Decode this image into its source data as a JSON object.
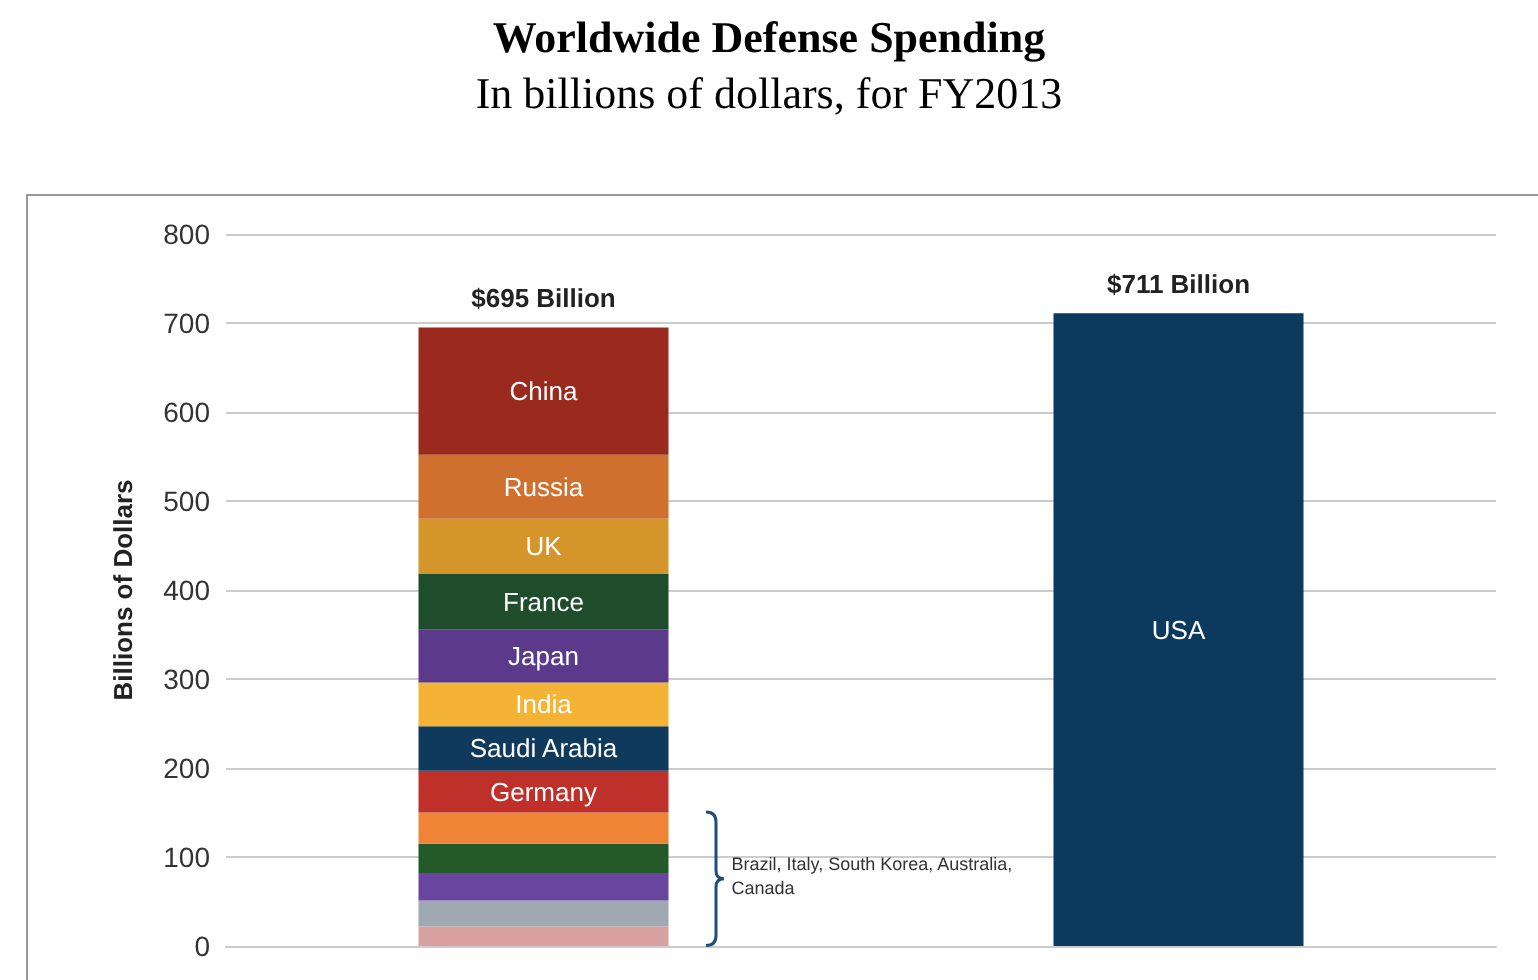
{
  "chart_data": {
    "type": "bar",
    "title": "Worldwide Defense Spending",
    "subtitle": "In billions of dollars, for FY2013",
    "ylabel": "Billions of Dollars",
    "categories": [
      null,
      null
    ],
    "stacked": true,
    "ylim": [
      0,
      800
    ],
    "yticks": [
      0,
      100,
      200,
      300,
      400,
      500,
      600,
      700,
      800
    ],
    "grid": "y",
    "tick_labels": "y",
    "series": [
      {
        "color": "#d9a0a0",
        "values": [
          22,
          null
        ]
      },
      {
        "color": "#a0a8b2",
        "values": [
          29,
          null
        ]
      },
      {
        "color": "#6a45a0",
        "values": [
          31,
          null
        ]
      },
      {
        "color": "#245a2a",
        "values": [
          33,
          null
        ]
      },
      {
        "color": "#ef8336",
        "values": [
          35,
          null
        ]
      },
      {
        "name": "Germany",
        "color": "#c0302a",
        "values": [
          47,
          null
        ]
      },
      {
        "name": "Saudi Arabia",
        "color": "#0f3a5c",
        "values": [
          50,
          null
        ]
      },
      {
        "name": "India",
        "color": "#f5b335",
        "values": [
          49,
          null
        ]
      },
      {
        "name": "Japan",
        "color": "#5b3a8c",
        "values": [
          60,
          null
        ]
      },
      {
        "name": "France",
        "color": "#1f4d2b",
        "values": [
          62,
          null
        ]
      },
      {
        "name": "UK",
        "color": "#d4962a",
        "values": [
          62,
          null
        ]
      },
      {
        "name": "Russia",
        "color": "#d0702f",
        "values": [
          72,
          null
        ]
      },
      {
        "name": "China",
        "color": "#9b2a1e",
        "values": [
          143,
          null
        ]
      },
      {
        "name": "USA",
        "color": "#0b3a5e",
        "values": [
          null,
          711
        ]
      }
    ],
    "totals": [
      "$695 Billion",
      "$711 Billion"
    ],
    "annotations": [
      "Brazil, Italy, South Korea, Australia, Canada"
    ]
  }
}
